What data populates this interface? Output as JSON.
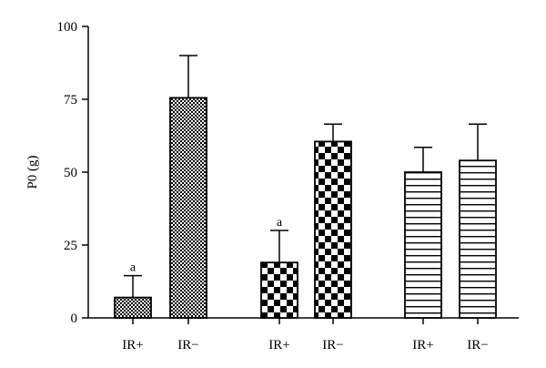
{
  "chart_data": {
    "type": "bar",
    "title": "",
    "xlabel": "",
    "ylabel": "P0 (g)",
    "ylim": [
      0,
      100
    ],
    "yticks": [
      0,
      25,
      50,
      75,
      100
    ],
    "grid": false,
    "legend": "none",
    "bars": [
      {
        "label": "IR+",
        "value": 7,
        "error": 7.5,
        "annotation": "a",
        "pattern": "fine-check"
      },
      {
        "label": "IR−",
        "value": 75.5,
        "error": 14.5,
        "annotation": "",
        "pattern": "fine-check"
      },
      {
        "label": "IR+",
        "value": 19,
        "error": 11,
        "annotation": "a",
        "pattern": "coarse-check"
      },
      {
        "label": "IR−",
        "value": 60.5,
        "error": 6,
        "annotation": "",
        "pattern": "coarse-check"
      },
      {
        "label": "IR+",
        "value": 50,
        "error": 8.5,
        "annotation": "",
        "pattern": "horizontal-stripes"
      },
      {
        "label": "IR−",
        "value": 54,
        "error": 12.5,
        "annotation": "",
        "pattern": "horizontal-stripes"
      }
    ]
  }
}
